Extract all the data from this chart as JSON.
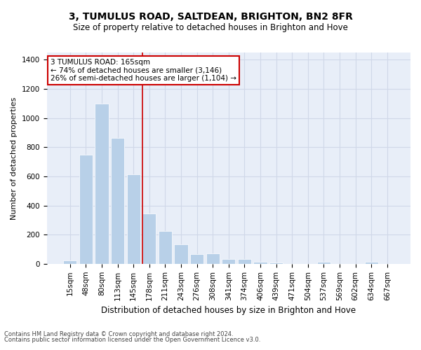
{
  "title": "3, TUMULUS ROAD, SALTDEAN, BRIGHTON, BN2 8FR",
  "subtitle": "Size of property relative to detached houses in Brighton and Hove",
  "xlabel": "Distribution of detached houses by size in Brighton and Hove",
  "ylabel": "Number of detached properties",
  "footnote1": "Contains HM Land Registry data © Crown copyright and database right 2024.",
  "footnote2": "Contains public sector information licensed under the Open Government Licence v3.0.",
  "bar_labels": [
    "15sqm",
    "48sqm",
    "80sqm",
    "113sqm",
    "145sqm",
    "178sqm",
    "211sqm",
    "243sqm",
    "276sqm",
    "308sqm",
    "341sqm",
    "374sqm",
    "406sqm",
    "439sqm",
    "471sqm",
    "504sqm",
    "537sqm",
    "569sqm",
    "602sqm",
    "634sqm",
    "667sqm"
  ],
  "bar_values": [
    25,
    748,
    1100,
    862,
    615,
    345,
    225,
    135,
    65,
    70,
    32,
    32,
    15,
    10,
    0,
    0,
    12,
    0,
    0,
    12,
    0
  ],
  "bar_color": "#b8d0e8",
  "grid_color": "#d0d8e8",
  "bg_color": "#e8eef8",
  "vline_color": "#cc0000",
  "vline_x": 4.55,
  "annotation_line1": "3 TUMULUS ROAD: 165sqm",
  "annotation_line2": "← 74% of detached houses are smaller (3,146)",
  "annotation_line3": "26% of semi-detached houses are larger (1,104) →",
  "ylim": [
    0,
    1450
  ],
  "yticks": [
    0,
    200,
    400,
    600,
    800,
    1000,
    1200,
    1400
  ],
  "title_fontsize": 10,
  "subtitle_fontsize": 8.5,
  "ylabel_fontsize": 8,
  "xlabel_fontsize": 8.5,
  "tick_fontsize": 7.5
}
